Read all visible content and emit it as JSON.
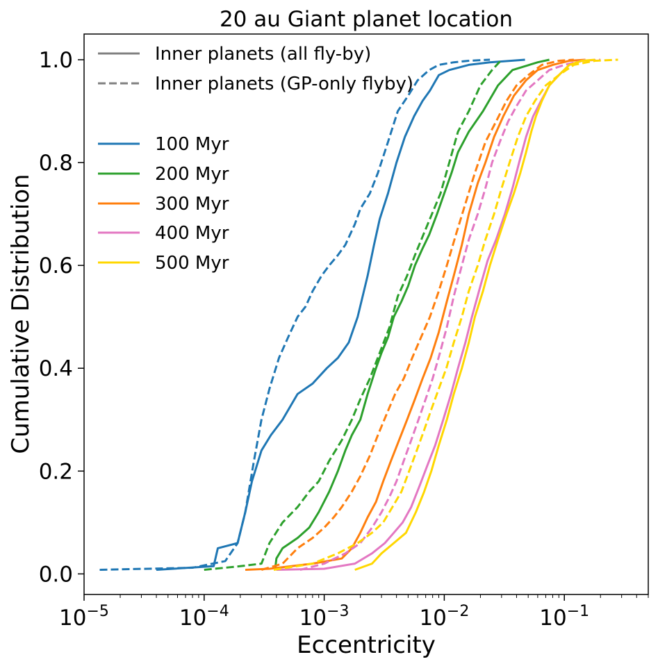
{
  "chart_data": {
    "type": "line",
    "title": "20 au Giant planet location",
    "xlabel": "Eccentricity",
    "ylabel": "Cumulative Distribution",
    "xscale": "log",
    "xlim": [
      1e-05,
      0.5
    ],
    "ylim": [
      -0.04,
      1.05
    ],
    "x_ticks": [
      {
        "value": 1e-05,
        "base": "10",
        "exp": "−5"
      },
      {
        "value": 0.0001,
        "base": "10",
        "exp": "−4"
      },
      {
        "value": 0.001,
        "base": "10",
        "exp": "−3"
      },
      {
        "value": 0.01,
        "base": "10",
        "exp": "−2"
      },
      {
        "value": 0.1,
        "base": "10",
        "exp": "−1"
      }
    ],
    "y_ticks": [
      {
        "value": 0.0,
        "label": "0.0"
      },
      {
        "value": 0.2,
        "label": "0.2"
      },
      {
        "value": 0.4,
        "label": "0.4"
      },
      {
        "value": 0.6,
        "label": "0.6"
      },
      {
        "value": 0.8,
        "label": "0.8"
      },
      {
        "value": 1.0,
        "label": "1.0"
      }
    ],
    "grid": false,
    "legend": {
      "placement": "top-left",
      "style_entries": [
        {
          "label": "Inner planets (all fly-by)",
          "dash": "solid",
          "color": "#808080"
        },
        {
          "label": "Inner planets (GP-only flyby)",
          "dash": "dashed",
          "color": "#808080"
        }
      ],
      "color_entries": [
        {
          "label": "100 Myr",
          "color": "#1f77b4"
        },
        {
          "label": "200 Myr",
          "color": "#2ca02c"
        },
        {
          "label": "300 Myr",
          "color": "#ff7f0e"
        },
        {
          "label": "400 Myr",
          "color": "#e377c2"
        },
        {
          "label": "500 Myr",
          "color": "#ffd700"
        }
      ]
    },
    "series": [
      {
        "name": "100 Myr (all fly-by)",
        "color": "#1f77b4",
        "dash": "solid",
        "x": [
          4e-05,
          0.00012,
          0.00013,
          0.00019,
          0.00022,
          0.00025,
          0.0003,
          0.00036,
          0.00045,
          0.0006,
          0.0008,
          0.00105,
          0.0013,
          0.0016,
          0.0019,
          0.0023,
          0.0026,
          0.0029,
          0.0034,
          0.004,
          0.0047,
          0.0056,
          0.0066,
          0.0076,
          0.009,
          0.011,
          0.016,
          0.024,
          0.036,
          0.047
        ],
        "y": [
          0.008,
          0.015,
          0.05,
          0.06,
          0.12,
          0.18,
          0.24,
          0.27,
          0.3,
          0.35,
          0.37,
          0.4,
          0.42,
          0.45,
          0.5,
          0.58,
          0.64,
          0.69,
          0.74,
          0.8,
          0.85,
          0.89,
          0.92,
          0.94,
          0.97,
          0.98,
          0.99,
          0.995,
          0.998,
          1.0
        ]
      },
      {
        "name": "100 Myr (GP-only flyby)",
        "color": "#1f77b4",
        "dash": "dashed",
        "x": [
          1.35e-05,
          8e-05,
          0.00015,
          0.00019,
          0.00022,
          0.00026,
          0.0003,
          0.00035,
          0.00042,
          0.0005,
          0.0006,
          0.0007,
          0.0008,
          0.00095,
          0.0011,
          0.0013,
          0.0015,
          0.0018,
          0.002,
          0.0024,
          0.0028,
          0.0034,
          0.0041,
          0.005,
          0.006,
          0.0075,
          0.009,
          0.012,
          0.016,
          0.024
        ],
        "y": [
          0.008,
          0.012,
          0.025,
          0.06,
          0.12,
          0.22,
          0.3,
          0.36,
          0.42,
          0.46,
          0.5,
          0.52,
          0.55,
          0.58,
          0.6,
          0.62,
          0.64,
          0.68,
          0.71,
          0.74,
          0.78,
          0.84,
          0.9,
          0.93,
          0.96,
          0.98,
          0.99,
          0.995,
          0.998,
          1.0
        ]
      },
      {
        "name": "200 Myr (all fly-by)",
        "color": "#2ca02c",
        "dash": "solid",
        "x": [
          0.00039,
          0.0004,
          0.00045,
          0.0006,
          0.00075,
          0.0009,
          0.0011,
          0.0013,
          0.0015,
          0.0017,
          0.002,
          0.0023,
          0.0027,
          0.003,
          0.0034,
          0.0038,
          0.0044,
          0.005,
          0.0057,
          0.0065,
          0.0075,
          0.0087,
          0.01,
          0.0115,
          0.013,
          0.016,
          0.021,
          0.028,
          0.037,
          0.06,
          0.075
        ],
        "y": [
          0.008,
          0.03,
          0.05,
          0.07,
          0.09,
          0.12,
          0.16,
          0.2,
          0.24,
          0.27,
          0.3,
          0.35,
          0.4,
          0.43,
          0.46,
          0.5,
          0.53,
          0.56,
          0.6,
          0.63,
          0.66,
          0.7,
          0.74,
          0.78,
          0.82,
          0.86,
          0.9,
          0.95,
          0.98,
          0.995,
          1.0
        ]
      },
      {
        "name": "200 Myr (GP-only flyby)",
        "color": "#2ca02c",
        "dash": "dashed",
        "x": [
          0.0001,
          0.0002,
          0.0003,
          0.00035,
          0.00045,
          0.0006,
          0.00075,
          0.0009,
          0.0011,
          0.0014,
          0.0017,
          0.002,
          0.0024,
          0.0029,
          0.0035,
          0.0041,
          0.0049,
          0.0057,
          0.0067,
          0.0079,
          0.0093,
          0.011,
          0.013,
          0.016,
          0.02,
          0.025,
          0.03
        ],
        "y": [
          0.008,
          0.015,
          0.02,
          0.06,
          0.1,
          0.13,
          0.16,
          0.18,
          0.22,
          0.26,
          0.3,
          0.34,
          0.38,
          0.43,
          0.48,
          0.54,
          0.58,
          0.62,
          0.66,
          0.7,
          0.74,
          0.8,
          0.86,
          0.9,
          0.95,
          0.98,
          1.0
        ]
      },
      {
        "name": "300 Myr (all fly-by)",
        "color": "#ff7f0e",
        "dash": "solid",
        "x": [
          0.00022,
          0.00035,
          0.0008,
          0.0014,
          0.0017,
          0.002,
          0.0023,
          0.0027,
          0.0031,
          0.0036,
          0.0042,
          0.0049,
          0.0057,
          0.0066,
          0.0077,
          0.009,
          0.0105,
          0.012,
          0.014,
          0.016,
          0.019,
          0.022,
          0.026,
          0.031,
          0.038,
          0.048,
          0.06,
          0.08,
          0.11,
          0.15
        ],
        "y": [
          0.008,
          0.01,
          0.02,
          0.03,
          0.05,
          0.08,
          0.11,
          0.14,
          0.18,
          0.22,
          0.26,
          0.3,
          0.34,
          0.38,
          0.42,
          0.47,
          0.53,
          0.58,
          0.64,
          0.7,
          0.76,
          0.8,
          0.85,
          0.89,
          0.93,
          0.96,
          0.98,
          0.99,
          0.998,
          1.0
        ]
      },
      {
        "name": "300 Myr (GP-only flyby)",
        "color": "#ff7f0e",
        "dash": "dashed",
        "x": [
          0.0003,
          0.00045,
          0.0006,
          0.0008,
          0.001,
          0.0012,
          0.0014,
          0.0017,
          0.002,
          0.0024,
          0.0028,
          0.0033,
          0.0039,
          0.0046,
          0.0054,
          0.0064,
          0.0076,
          0.009,
          0.0105,
          0.0125,
          0.015,
          0.018,
          0.022,
          0.027,
          0.033,
          0.04,
          0.05,
          0.065,
          0.09,
          0.12
        ],
        "y": [
          0.008,
          0.02,
          0.05,
          0.07,
          0.09,
          0.11,
          0.13,
          0.16,
          0.19,
          0.23,
          0.27,
          0.31,
          0.35,
          0.38,
          0.42,
          0.46,
          0.5,
          0.55,
          0.6,
          0.66,
          0.72,
          0.78,
          0.84,
          0.88,
          0.92,
          0.95,
          0.97,
          0.99,
          0.998,
          1.0
        ]
      },
      {
        "name": "400 Myr (all fly-by)",
        "color": "#e377c2",
        "dash": "solid",
        "x": [
          0.0004,
          0.001,
          0.0018,
          0.0025,
          0.0032,
          0.0038,
          0.0045,
          0.0053,
          0.0062,
          0.0072,
          0.0084,
          0.0098,
          0.0114,
          0.013,
          0.015,
          0.017,
          0.02,
          0.023,
          0.027,
          0.032,
          0.037,
          0.042,
          0.048,
          0.055,
          0.064,
          0.075,
          0.09,
          0.11,
          0.15
        ],
        "y": [
          0.008,
          0.01,
          0.02,
          0.04,
          0.06,
          0.08,
          0.1,
          0.13,
          0.17,
          0.21,
          0.25,
          0.3,
          0.35,
          0.4,
          0.45,
          0.5,
          0.56,
          0.61,
          0.65,
          0.7,
          0.75,
          0.8,
          0.85,
          0.89,
          0.92,
          0.95,
          0.97,
          0.99,
          1.0
        ]
      },
      {
        "name": "400 Myr (GP-only flyby)",
        "color": "#e377c2",
        "dash": "dashed",
        "x": [
          0.00063,
          0.001,
          0.0015,
          0.002,
          0.0025,
          0.003,
          0.0035,
          0.004,
          0.0046,
          0.0053,
          0.0061,
          0.007,
          0.008,
          0.0092,
          0.0105,
          0.012,
          0.014,
          0.016,
          0.019,
          0.022,
          0.025,
          0.029,
          0.034,
          0.04,
          0.048,
          0.06,
          0.075,
          0.1,
          0.14,
          0.2
        ],
        "y": [
          0.008,
          0.02,
          0.04,
          0.06,
          0.09,
          0.12,
          0.15,
          0.18,
          0.22,
          0.26,
          0.3,
          0.34,
          0.38,
          0.43,
          0.48,
          0.54,
          0.6,
          0.65,
          0.7,
          0.75,
          0.8,
          0.84,
          0.88,
          0.91,
          0.94,
          0.96,
          0.98,
          0.99,
          0.998,
          1.0
        ]
      },
      {
        "name": "500 Myr (all fly-by)",
        "color": "#ffd700",
        "dash": "solid",
        "x": [
          0.0018,
          0.0025,
          0.003,
          0.0038,
          0.0048,
          0.0058,
          0.0068,
          0.0078,
          0.009,
          0.0105,
          0.012,
          0.014,
          0.016,
          0.018,
          0.021,
          0.024,
          0.028,
          0.033,
          0.038,
          0.043,
          0.048,
          0.053,
          0.058,
          0.065,
          0.075,
          0.09,
          0.11,
          0.14,
          0.18
        ],
        "y": [
          0.008,
          0.02,
          0.04,
          0.06,
          0.08,
          0.12,
          0.16,
          0.2,
          0.25,
          0.3,
          0.35,
          0.4,
          0.45,
          0.5,
          0.55,
          0.6,
          0.65,
          0.7,
          0.74,
          0.78,
          0.82,
          0.86,
          0.89,
          0.92,
          0.95,
          0.97,
          0.99,
          0.998,
          1.0
        ]
      },
      {
        "name": "500 Myr (GP-only flyby)",
        "color": "#ffd700",
        "dash": "dashed",
        "x": [
          0.00038,
          0.0008,
          0.0013,
          0.0019,
          0.0025,
          0.0031,
          0.0037,
          0.0044,
          0.0051,
          0.0059,
          0.0068,
          0.0078,
          0.009,
          0.0104,
          0.012,
          0.014,
          0.016,
          0.019,
          0.022,
          0.026,
          0.03,
          0.035,
          0.041,
          0.048,
          0.057,
          0.07,
          0.09,
          0.12,
          0.18,
          0.28
        ],
        "y": [
          0.008,
          0.02,
          0.04,
          0.06,
          0.08,
          0.1,
          0.13,
          0.16,
          0.2,
          0.24,
          0.28,
          0.32,
          0.36,
          0.4,
          0.45,
          0.5,
          0.55,
          0.6,
          0.65,
          0.7,
          0.75,
          0.8,
          0.85,
          0.89,
          0.92,
          0.95,
          0.97,
          0.99,
          0.998,
          1.0
        ]
      }
    ]
  }
}
